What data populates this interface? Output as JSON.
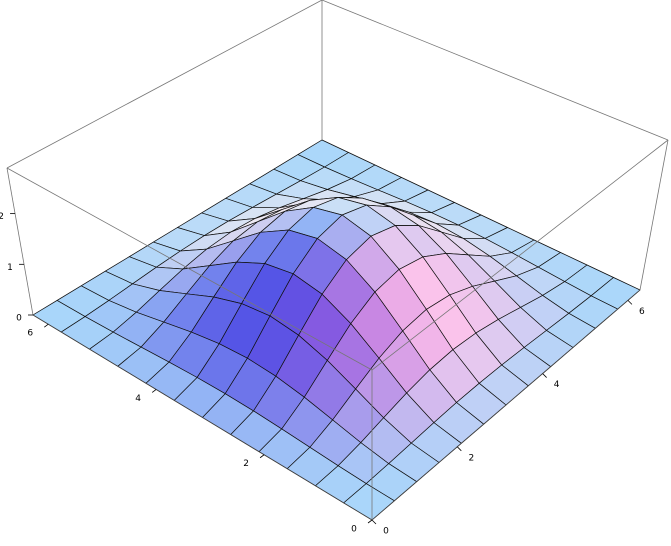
{
  "chart_data": {
    "type": "surface",
    "x": [
      0,
      0.524,
      1.047,
      1.571,
      2.094,
      2.618,
      3.142,
      3.665,
      4.189,
      4.712,
      5.236,
      5.76,
      6.283
    ],
    "y": [
      0,
      0.524,
      1.047,
      1.571,
      2.094,
      2.618,
      3.142,
      3.665,
      4.189,
      4.712,
      5.236,
      5.76,
      6.283
    ],
    "z": [
      [
        0,
        0,
        0,
        0,
        0,
        0,
        0,
        0,
        0,
        0,
        0,
        0,
        0
      ],
      [
        0,
        0.009,
        0.034,
        0.067,
        0.1,
        0.125,
        0.134,
        0.125,
        0.1,
        0.067,
        0.034,
        0.009,
        0
      ],
      [
        0,
        0.034,
        0.125,
        0.25,
        0.375,
        0.467,
        0.5,
        0.467,
        0.375,
        0.25,
        0.125,
        0.034,
        0
      ],
      [
        0,
        0.067,
        0.25,
        0.5,
        0.75,
        0.933,
        1,
        0.933,
        0.75,
        0.5,
        0.25,
        0.067,
        0
      ],
      [
        0,
        0.1,
        0.375,
        0.75,
        1.125,
        1.4,
        1.5,
        1.4,
        1.125,
        0.75,
        0.375,
        0.1,
        0
      ],
      [
        0,
        0.125,
        0.467,
        0.933,
        1.4,
        1.741,
        1.866,
        1.741,
        1.4,
        0.933,
        0.467,
        0.125,
        0
      ],
      [
        0,
        0.134,
        0.5,
        1,
        1.5,
        1.866,
        2,
        1.866,
        1.5,
        1,
        0.5,
        0.134,
        0
      ],
      [
        0,
        0.125,
        0.467,
        0.933,
        1.4,
        1.741,
        1.866,
        1.741,
        1.4,
        0.933,
        0.467,
        0.125,
        0
      ],
      [
        0,
        0.1,
        0.375,
        0.75,
        1.125,
        1.4,
        1.5,
        1.4,
        1.125,
        0.75,
        0.375,
        0.1,
        0
      ],
      [
        0,
        0.067,
        0.25,
        0.5,
        0.75,
        0.933,
        1,
        0.933,
        0.75,
        0.5,
        0.25,
        0.067,
        0
      ],
      [
        0,
        0.034,
        0.125,
        0.25,
        0.375,
        0.467,
        0.5,
        0.467,
        0.375,
        0.25,
        0.125,
        0.034,
        0
      ],
      [
        0,
        0.009,
        0.034,
        0.067,
        0.1,
        0.125,
        0.134,
        0.125,
        0.1,
        0.067,
        0.034,
        0.009,
        0
      ],
      [
        0,
        0,
        0,
        0,
        0,
        0,
        0,
        0,
        0,
        0,
        0,
        0,
        0
      ]
    ],
    "xlim": [
      0,
      6.283
    ],
    "ylim": [
      0,
      6.283
    ],
    "zlim": [
      0,
      2.9
    ],
    "xticks": [
      0,
      2,
      4,
      6
    ],
    "yticks": [
      0,
      2,
      4,
      6
    ],
    "zticks": [
      0,
      1,
      2
    ],
    "box": true,
    "mesh": true
  }
}
